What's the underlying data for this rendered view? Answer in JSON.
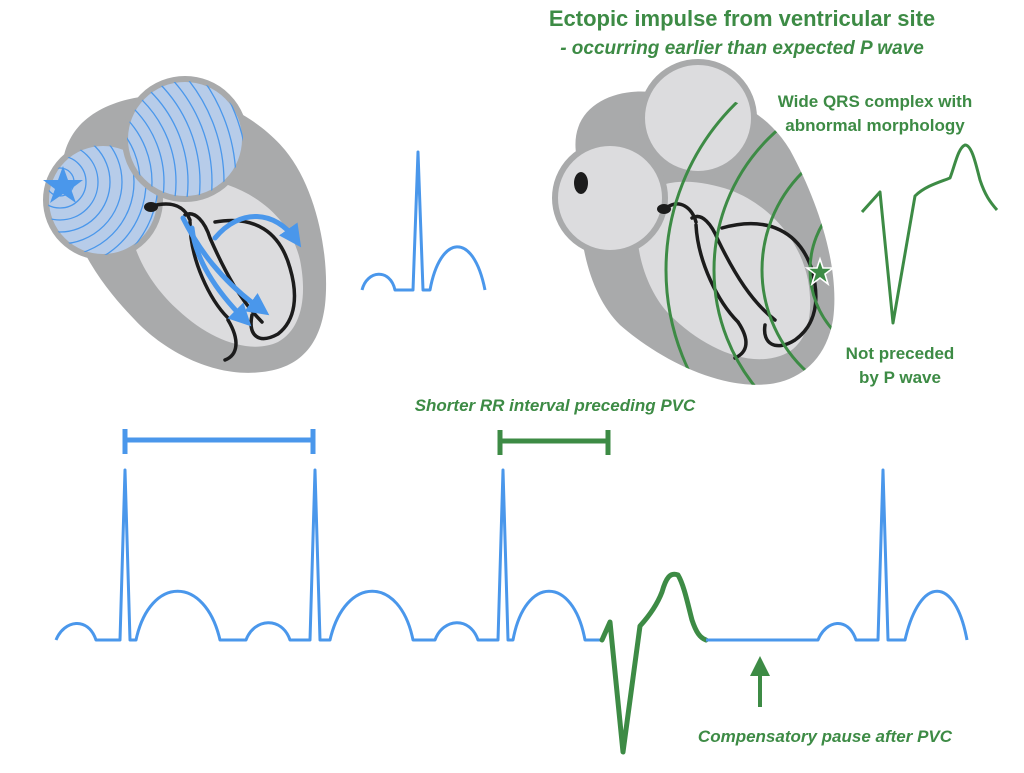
{
  "title": "Ectopic impulse from ventricular site",
  "subtitle": "- occurring earlier than expected P wave",
  "qrs_note": {
    "line1": "Wide QRS complex with",
    "line2": "abnormal morphology"
  },
  "p_wave_note": {
    "line1": "Not preceded",
    "line2": "by P wave"
  },
  "rr_note": "Shorter RR interval preceding PVC",
  "pause_note": "Compensatory pause after PVC",
  "colors": {
    "normal": "#4a97eb",
    "ectopic": "#3d8b45",
    "heart_outer": "#a9aaab",
    "heart_inner": "#dcdcde",
    "atrium_fill": "#b7cce9"
  }
}
